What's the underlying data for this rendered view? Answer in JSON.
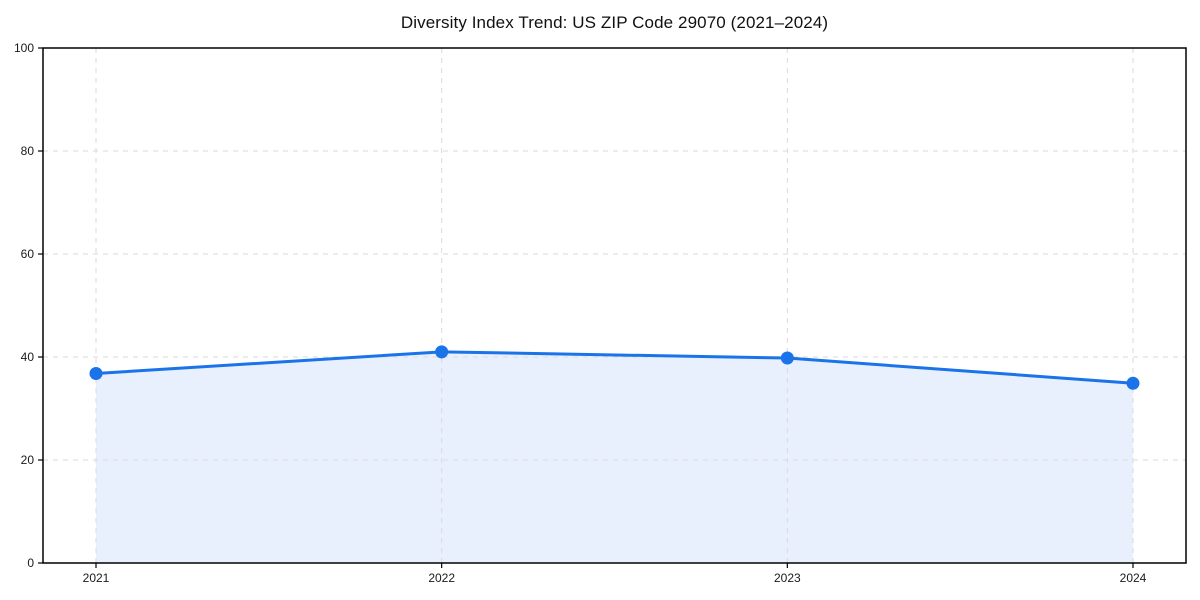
{
  "chart_data": {
    "type": "area",
    "title": "Diversity Index Trend: US ZIP Code 29070 (2021–2024)",
    "x": [
      2021,
      2022,
      2023,
      2024
    ],
    "x_tick_labels": [
      "2021",
      "2022",
      "2023",
      "2024"
    ],
    "series": [
      {
        "name": "Diversity Index",
        "values": [
          36.8,
          41.0,
          39.8,
          34.9
        ]
      }
    ],
    "xlabel": "",
    "ylabel": "",
    "ylim": [
      0,
      100
    ],
    "yticks": [
      0,
      20,
      40,
      60,
      80,
      100
    ],
    "grid": "dashed",
    "legend": "none",
    "colors": {
      "line": "#1a73e8",
      "marker": "#1a73e8",
      "fill": "#e8f0fd",
      "grid": "#dadada",
      "axis": "#000000",
      "text": "#1a1a1a",
      "background": "#ffffff"
    }
  }
}
